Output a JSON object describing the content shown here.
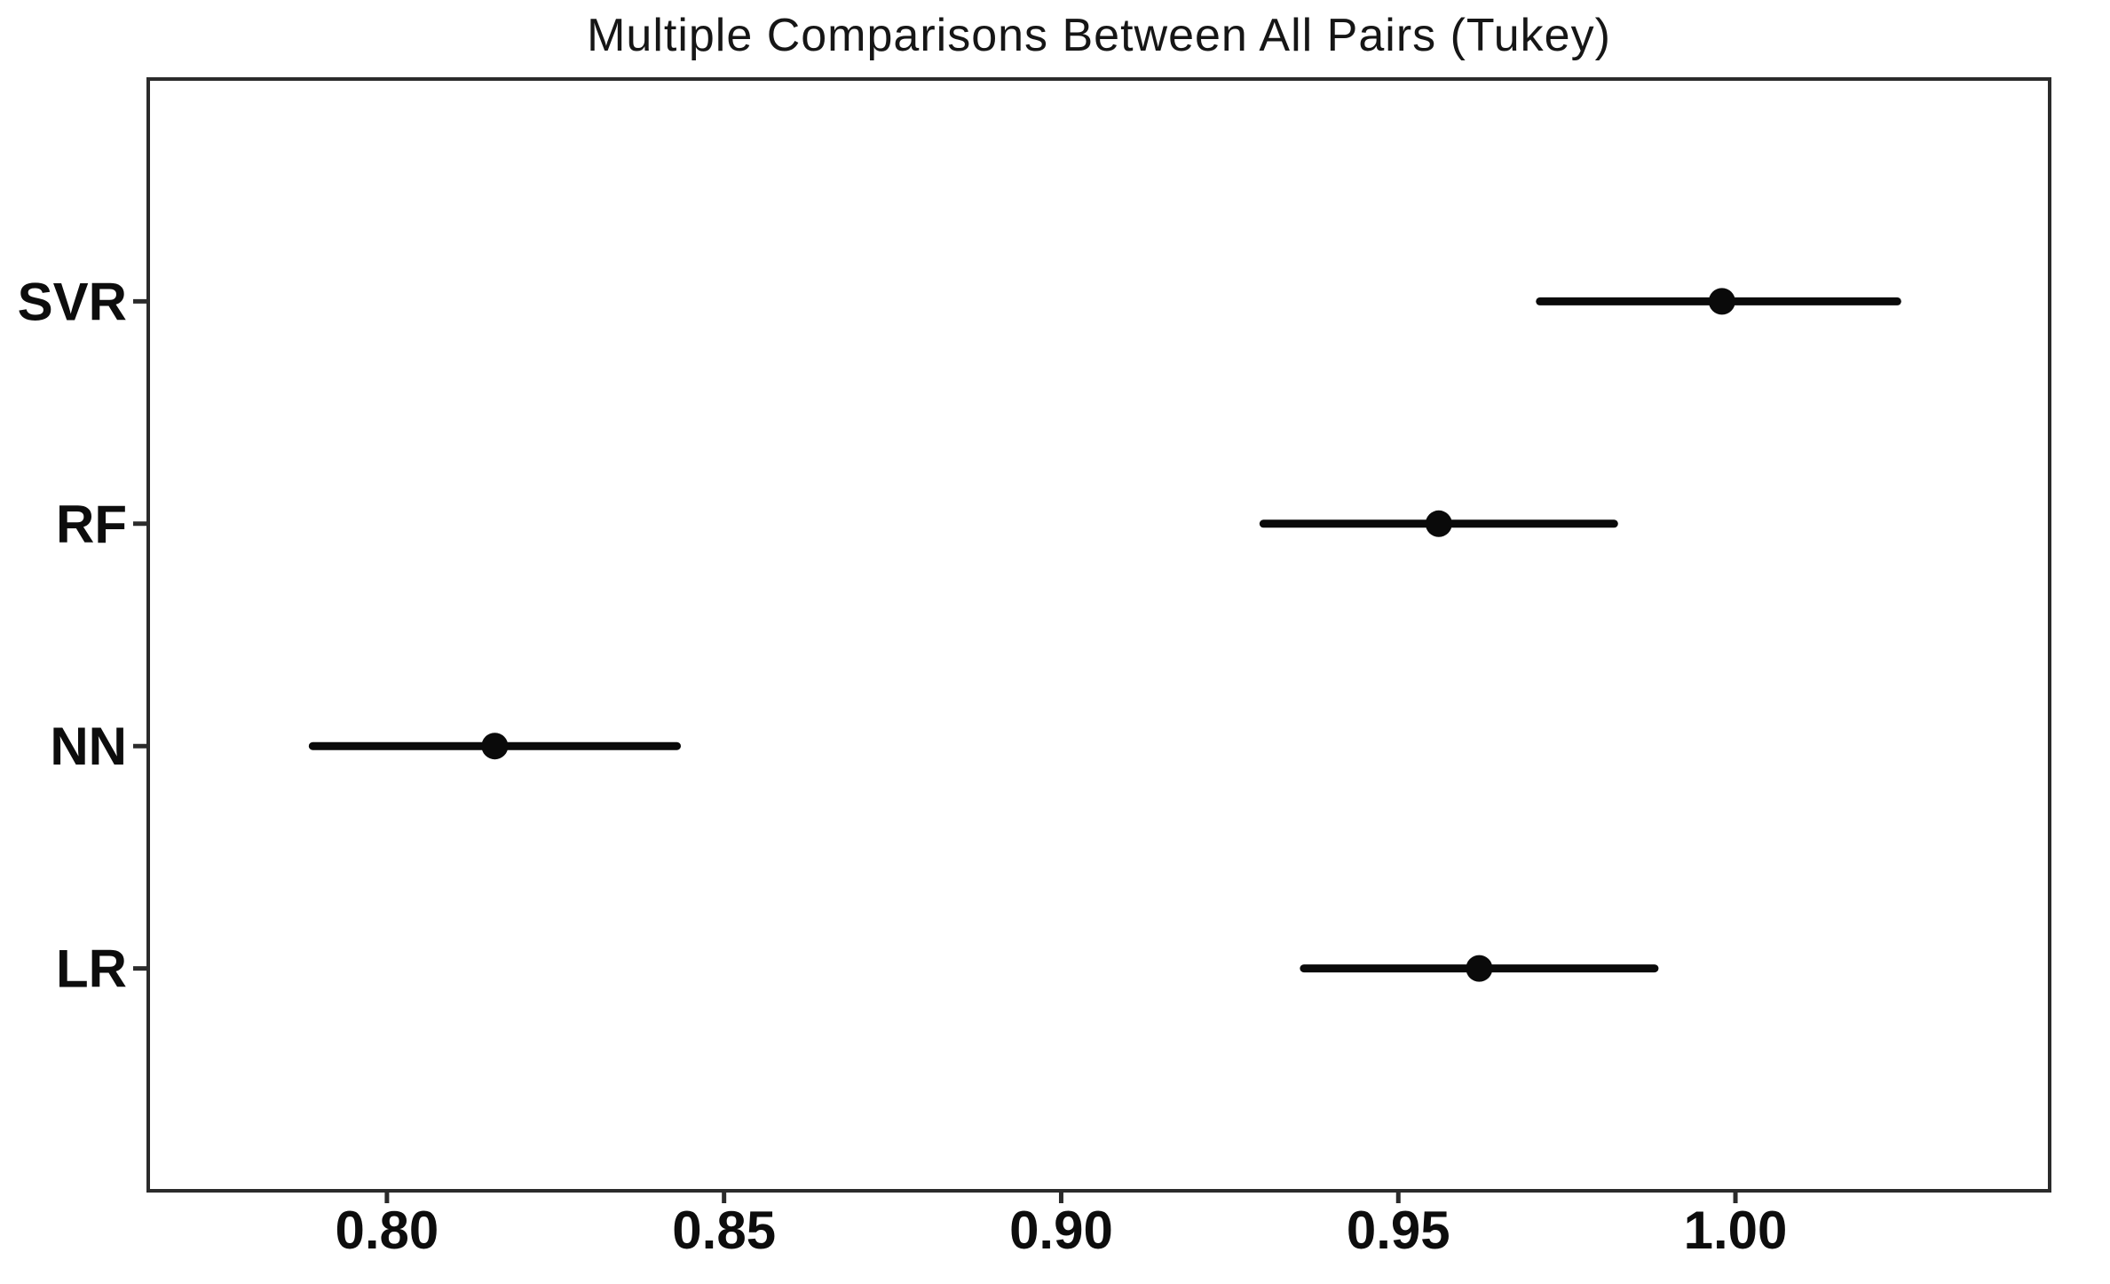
{
  "chart_data": {
    "type": "scatter",
    "subtype": "horizontal-errorbar-tukey",
    "title": "Multiple Comparisons Between All Pairs (Tukey)",
    "categories": [
      "SVR",
      "RF",
      "NN",
      "LR"
    ],
    "series": [
      {
        "name": "SVR",
        "mean": 0.998,
        "ci_low": 0.971,
        "ci_high": 1.024
      },
      {
        "name": "RF",
        "mean": 0.956,
        "ci_low": 0.93,
        "ci_high": 0.982
      },
      {
        "name": "NN",
        "mean": 0.816,
        "ci_low": 0.789,
        "ci_high": 0.843
      },
      {
        "name": "LR",
        "mean": 0.962,
        "ci_low": 0.936,
        "ci_high": 0.988
      }
    ],
    "xticks": [
      0.8,
      0.85,
      0.9,
      0.95,
      1.0
    ],
    "xtick_labels": [
      "0.80",
      "0.85",
      "0.90",
      "0.95",
      "1.00"
    ],
    "xlim": [
      0.7646,
      1.0466
    ],
    "xlabel": "",
    "ylabel": "",
    "grid": false,
    "legend": null,
    "marker_color": "#0a0a0a",
    "line_color": "#0a0a0a",
    "frame_color": "#2b2b2b",
    "background": "#ffffff"
  }
}
